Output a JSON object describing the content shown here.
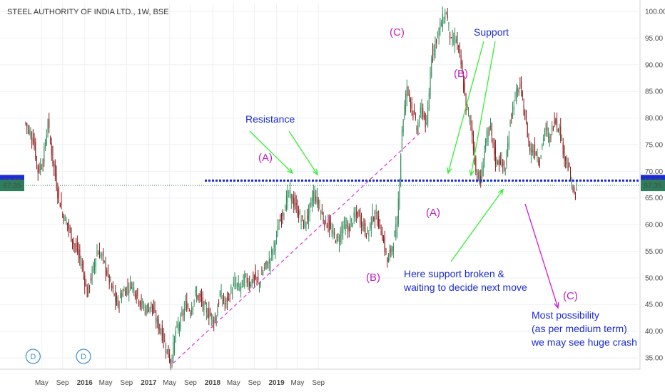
{
  "chart_data": {
    "type": "candlestick",
    "title": "STEEL AUTHORITY OF INDIA LTD., 1W, BSE",
    "interval": "1W",
    "exchange": "BSE",
    "y_axis": {
      "position": "right",
      "range": [
        33,
        102
      ],
      "ticks": [
        "100.00",
        "95.00",
        "90.00",
        "85.00",
        "80.00",
        "75.00",
        "70.00",
        "65.00",
        "60.00",
        "55.00",
        "50.00",
        "45.00",
        "40.00",
        "35.00"
      ]
    },
    "x_axis": {
      "ticks": [
        "May",
        "Sep",
        "2016",
        "May",
        "Sep",
        "2017",
        "May",
        "Sep",
        "2018",
        "May",
        "Sep",
        "2019",
        "May",
        "Sep"
      ]
    },
    "price_labels": [
      {
        "value": 68.25,
        "text": "68.25",
        "color": "#1a2cd6"
      },
      {
        "value": 67.35,
        "text": "67.35",
        "color": "#2e7d5b"
      }
    ],
    "colors": {
      "up": "#2e8b57",
      "down": "#8b1a1a",
      "resistance_line": "#1a2cd6",
      "trendline": "#e040e0",
      "green_arrow": "#33ee33",
      "magenta_arrow": "#d61ad6",
      "text_blue": "#1a2cd6",
      "text_magenta": "#c020c0"
    },
    "resistance_level": 68.25,
    "current_price": 67.35,
    "trendline": {
      "from": {
        "week": 120,
        "price": 34
      },
      "to": {
        "week": 322,
        "price": 77.5
      }
    },
    "dividend_markers": [
      {
        "label": "D",
        "week": 6
      },
      {
        "label": "D",
        "week": 47
      }
    ],
    "path_points": [
      [
        0,
        79
      ],
      [
        6,
        76
      ],
      [
        10,
        70
      ],
      [
        14,
        72
      ],
      [
        18,
        79
      ],
      [
        22,
        72
      ],
      [
        26,
        66
      ],
      [
        30,
        62
      ],
      [
        34,
        60
      ],
      [
        38,
        57
      ],
      [
        42,
        55
      ],
      [
        46,
        52
      ],
      [
        50,
        47
      ],
      [
        54,
        51
      ],
      [
        58,
        55
      ],
      [
        62,
        54
      ],
      [
        66,
        51
      ],
      [
        70,
        48
      ],
      [
        74,
        45
      ],
      [
        78,
        47
      ],
      [
        82,
        48
      ],
      [
        86,
        49
      ],
      [
        90,
        47
      ],
      [
        94,
        45
      ],
      [
        98,
        44
      ],
      [
        102,
        45
      ],
      [
        106,
        42
      ],
      [
        110,
        40
      ],
      [
        114,
        37
      ],
      [
        118,
        34
      ],
      [
        122,
        40
      ],
      [
        126,
        42
      ],
      [
        130,
        45
      ],
      [
        134,
        44
      ],
      [
        138,
        47
      ],
      [
        142,
        46
      ],
      [
        146,
        44
      ],
      [
        150,
        43
      ],
      [
        154,
        42
      ],
      [
        158,
        47
      ],
      [
        162,
        45
      ],
      [
        166,
        47
      ],
      [
        170,
        49
      ],
      [
        174,
        48
      ],
      [
        178,
        50
      ],
      [
        182,
        49
      ],
      [
        186,
        50
      ],
      [
        190,
        49
      ],
      [
        194,
        52
      ],
      [
        198,
        53
      ],
      [
        202,
        56
      ],
      [
        206,
        60
      ],
      [
        210,
        63
      ],
      [
        214,
        66
      ],
      [
        218,
        64
      ],
      [
        222,
        62
      ],
      [
        226,
        60
      ],
      [
        230,
        62
      ],
      [
        234,
        66
      ],
      [
        238,
        64
      ],
      [
        242,
        61
      ],
      [
        246,
        60
      ],
      [
        250,
        58
      ],
      [
        254,
        57
      ],
      [
        258,
        60
      ],
      [
        262,
        59
      ],
      [
        266,
        61
      ],
      [
        270,
        62
      ],
      [
        274,
        60
      ],
      [
        278,
        58
      ],
      [
        282,
        62
      ],
      [
        286,
        61
      ],
      [
        290,
        58
      ],
      [
        294,
        53
      ],
      [
        298,
        56
      ],
      [
        302,
        60
      ],
      [
        306,
        78
      ],
      [
        310,
        86
      ],
      [
        314,
        82
      ],
      [
        318,
        78
      ],
      [
        322,
        82
      ],
      [
        326,
        78
      ],
      [
        330,
        92
      ],
      [
        334,
        95
      ],
      [
        338,
        98
      ],
      [
        342,
        100
      ],
      [
        346,
        94
      ],
      [
        350,
        95
      ],
      [
        354,
        90
      ],
      [
        358,
        82
      ],
      [
        362,
        79
      ],
      [
        366,
        70
      ],
      [
        370,
        68
      ],
      [
        374,
        76
      ],
      [
        378,
        78
      ],
      [
        382,
        72
      ],
      [
        386,
        72
      ],
      [
        390,
        70
      ],
      [
        394,
        80
      ],
      [
        398,
        84
      ],
      [
        402,
        86
      ],
      [
        406,
        80
      ],
      [
        410,
        74
      ],
      [
        414,
        74
      ],
      [
        418,
        72
      ],
      [
        422,
        78
      ],
      [
        426,
        76
      ],
      [
        430,
        80
      ],
      [
        434,
        78
      ],
      [
        438,
        73
      ],
      [
        442,
        70
      ],
      [
        446,
        65
      ],
      [
        448,
        67
      ]
    ],
    "annotations": {
      "resistance": "Resistance",
      "support": "Support",
      "a_left": "(A)",
      "b_mid": "(B)",
      "c_top": "(C)",
      "b_top": "(B)",
      "a_right": "(A)",
      "c_right": "(C)",
      "broken_line1": "Here support broken &",
      "broken_line2": "waiting to decide next move",
      "possibility_line1": "Most possibility",
      "possibility_line2": "(as per medium term)",
      "possibility_line3": "we may see huge crash"
    }
  }
}
